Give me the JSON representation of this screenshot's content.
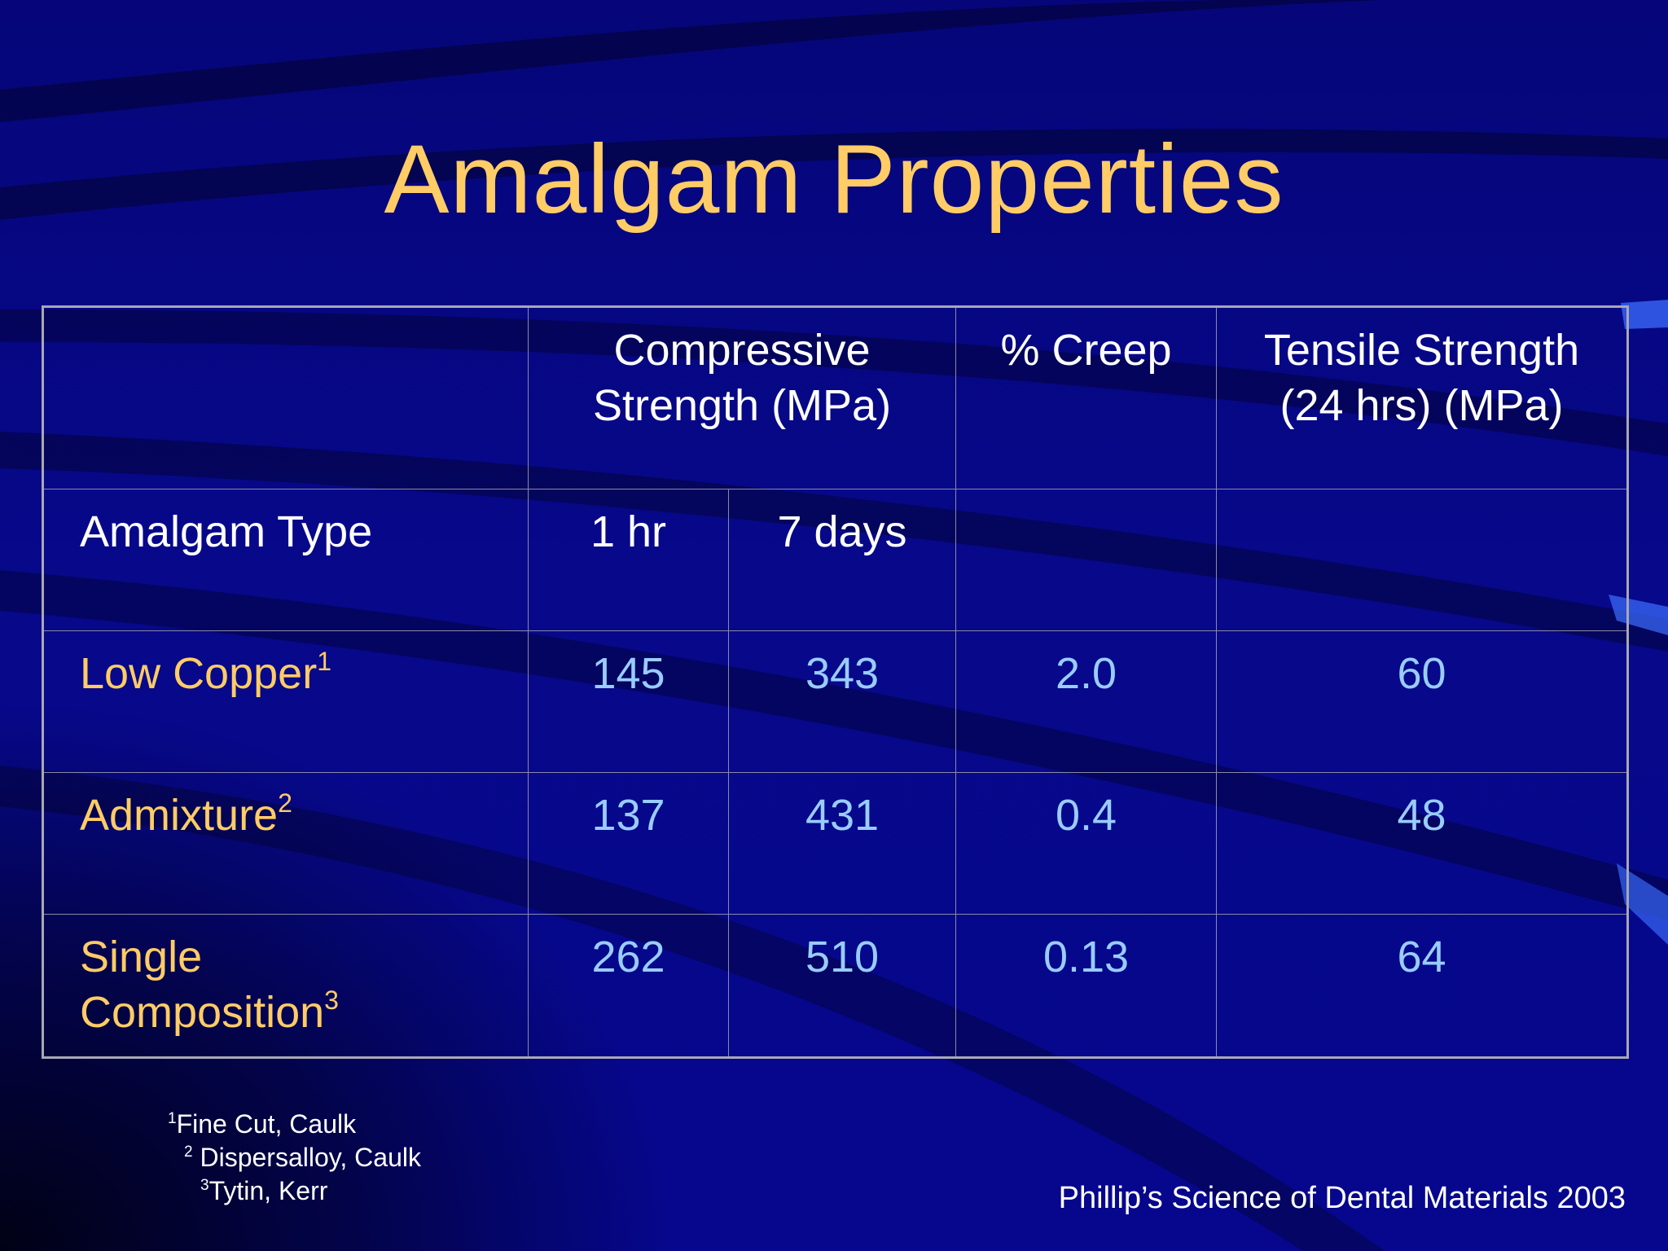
{
  "slide": {
    "title": "Amalgam Properties",
    "colors": {
      "background": "#06067a",
      "title": "#ffcc66",
      "header_text": "#ffffff",
      "type_label": "#ffcc66",
      "value_text": "#99ccff"
    },
    "table": {
      "headers": {
        "compressive": "Compressive Strength (MPa)",
        "creep": "% Creep",
        "tensile": "Tensile Strength (24 hrs) (MPa)",
        "type": "Amalgam Type",
        "one_hr": "1 hr",
        "seven_days": "7 days"
      },
      "rows": [
        {
          "type": "Low Copper",
          "note": "1",
          "one_hr": "145",
          "seven_days": "343",
          "creep": "2.0",
          "tensile": "60"
        },
        {
          "type": "Admixture",
          "note": "2",
          "one_hr": "137",
          "seven_days": "431",
          "creep": "0.4",
          "tensile": "48"
        },
        {
          "type": "Single Composition",
          "note": "3",
          "one_hr": "262",
          "seven_days": "510",
          "creep": "0.13",
          "tensile": "64"
        }
      ]
    },
    "footnotes": [
      {
        "mark": "1",
        "text": "Fine Cut, Caulk"
      },
      {
        "mark": "2",
        "text": "Dispersalloy, Caulk"
      },
      {
        "mark": "3",
        "text": "Tytin, Kerr"
      }
    ],
    "source": "Phillip’s Science of Dental Materials 2003"
  }
}
